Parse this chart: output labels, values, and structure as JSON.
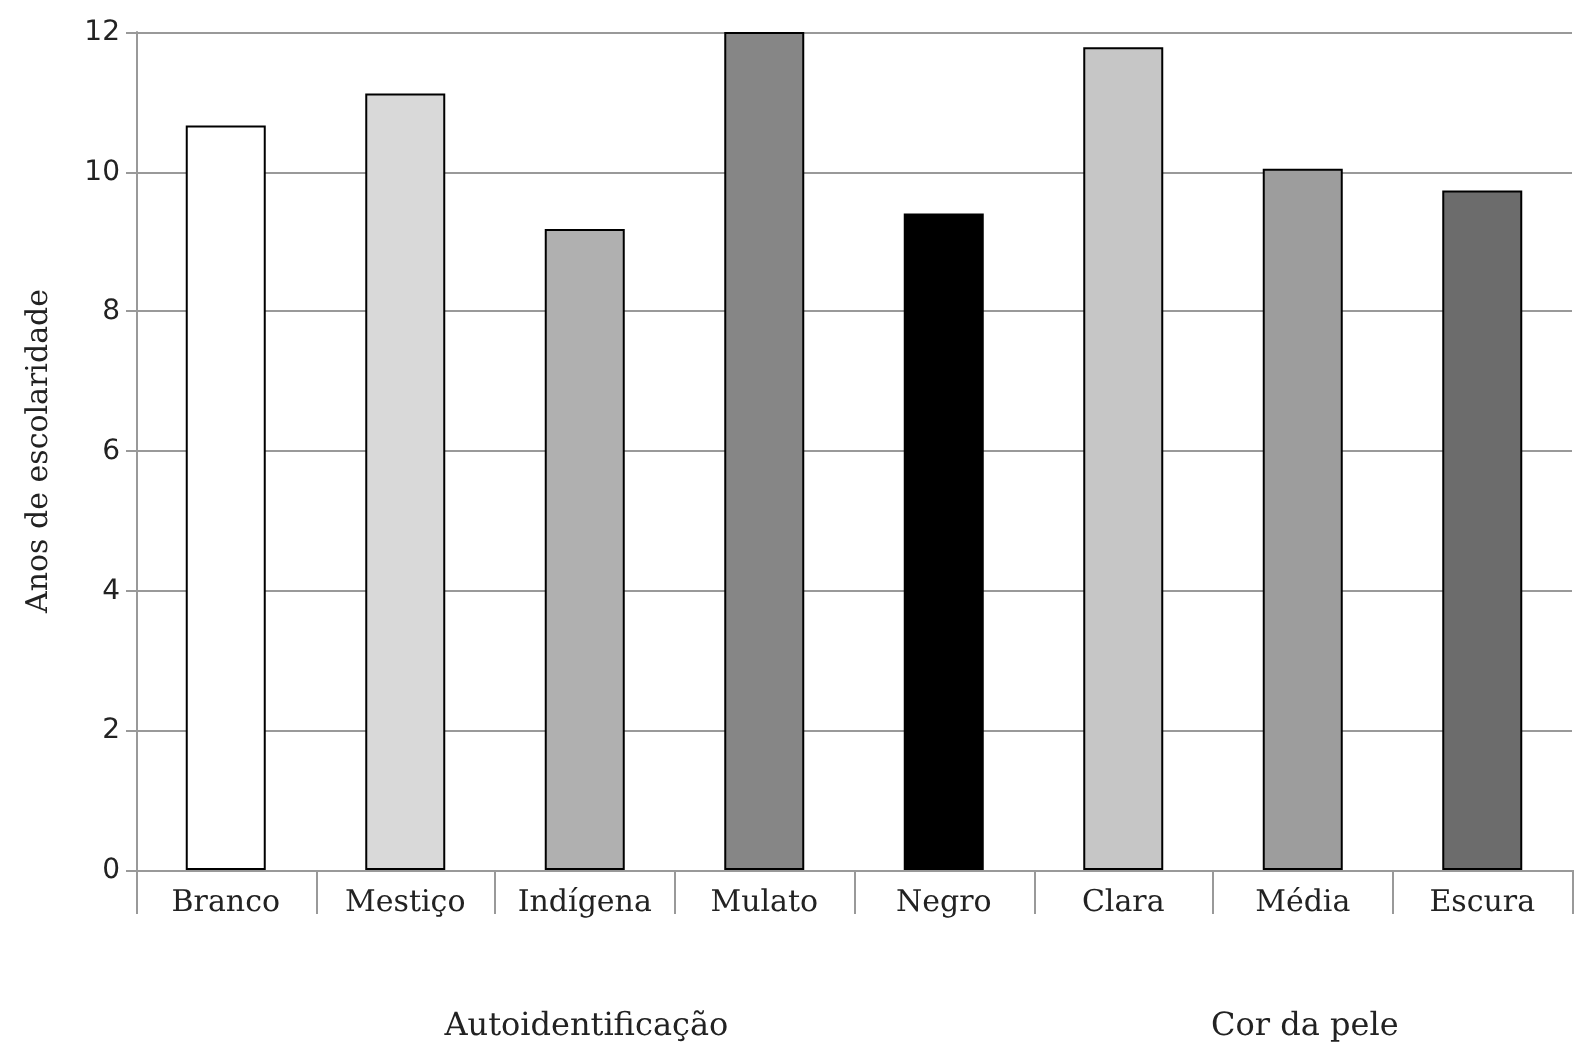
{
  "chart_data": {
    "type": "bar",
    "ylabel": "Anos de escolaridade",
    "categories": [
      "Branco",
      "Mestiço",
      "Indígena",
      "Mulato",
      "Negro",
      "Clara",
      "Média",
      "Escura"
    ],
    "values": [
      10.66,
      11.12,
      9.18,
      12.0,
      9.4,
      11.78,
      10.04,
      9.73
    ],
    "colors": [
      "#ffffff",
      "#d9d9d9",
      "#b0b0b0",
      "#868686",
      "#000000",
      "#c6c6c6",
      "#9d9d9d",
      "#6c6c6c"
    ],
    "ylim": [
      0,
      12
    ],
    "yticks": [
      0,
      2,
      4,
      6,
      8,
      10,
      12
    ],
    "grid": "y",
    "annotations": [
      "Autoidentificação",
      "Cor da pele"
    ]
  }
}
